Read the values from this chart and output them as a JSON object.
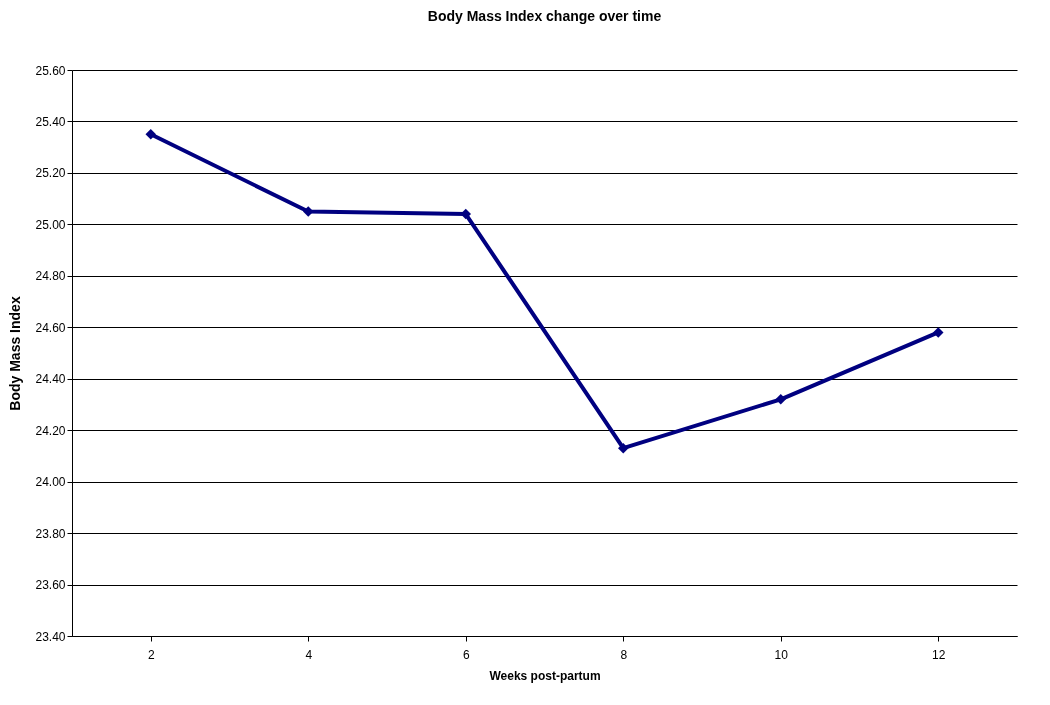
{
  "chart_data": {
    "type": "line",
    "title": "Body Mass Index change over time",
    "xlabel": "Weeks post-partum",
    "ylabel": "Body Mass Index",
    "categories": [
      "2",
      "4",
      "6",
      "8",
      "10",
      "12"
    ],
    "series": [
      {
        "color": "#000080",
        "values": [
          25.35,
          25.05,
          25.04,
          24.13,
          24.32,
          24.58
        ]
      }
    ],
    "ylim": [
      23.4,
      25.6
    ],
    "yticks": [
      {
        "value": 23.4,
        "label": "23.40"
      },
      {
        "value": 23.6,
        "label": "23.60"
      },
      {
        "value": 23.8,
        "label": "23.80"
      },
      {
        "value": 24.0,
        "label": "24.00"
      },
      {
        "value": 24.2,
        "label": "24.20"
      },
      {
        "value": 24.4,
        "label": "24.40"
      },
      {
        "value": 24.6,
        "label": "24.60"
      },
      {
        "value": 24.8,
        "label": "24.80"
      },
      {
        "value": 25.0,
        "label": "25.00"
      },
      {
        "value": 25.2,
        "label": "25.20"
      },
      {
        "value": 25.4,
        "label": "25.40"
      },
      {
        "value": 25.6,
        "label": "25.60"
      }
    ],
    "grid": "y",
    "marker": "diamond",
    "line_style": "solid"
  }
}
